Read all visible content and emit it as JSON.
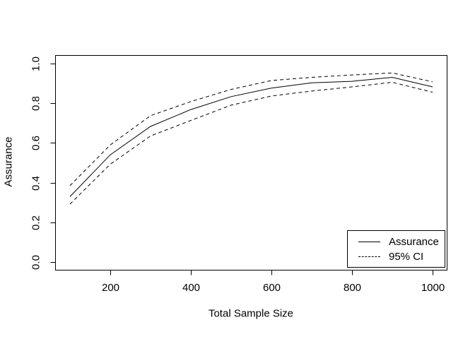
{
  "figure": {
    "background": "#ffffff",
    "line_color": "#000000",
    "text_color": "#000000"
  },
  "chart_data": {
    "type": "line",
    "title": "",
    "xlabel": "Total Sample Size",
    "ylabel": "Assurance",
    "x": [
      100,
      200,
      300,
      400,
      500,
      600,
      700,
      800,
      900,
      1000
    ],
    "series": [
      {
        "name": "Assurance",
        "style": "solid",
        "values": [
          0.33,
          0.54,
          0.683,
          0.768,
          0.833,
          0.876,
          0.902,
          0.91,
          0.93,
          0.882
        ]
      },
      {
        "name": "95% CI upper",
        "style": "dashed",
        "values": [
          0.385,
          0.59,
          0.737,
          0.808,
          0.869,
          0.914,
          0.93,
          0.942,
          0.952,
          0.907
        ]
      },
      {
        "name": "95% CI lower",
        "style": "dashed",
        "values": [
          0.292,
          0.493,
          0.635,
          0.713,
          0.79,
          0.836,
          0.861,
          0.882,
          0.905,
          0.855
        ]
      }
    ],
    "x_ticks": [
      "200",
      "400",
      "600",
      "800",
      "1000"
    ],
    "y_ticks": [
      "0.0",
      "0.2",
      "0.4",
      "0.6",
      "0.8",
      "1.0"
    ],
    "xlim": [
      64,
      1036
    ],
    "ylim": [
      -0.04,
      1.04
    ],
    "grid": false,
    "legend": {
      "position": "bottom-right",
      "entries": [
        {
          "label": "Assurance",
          "line": "solid"
        },
        {
          "label": "95% CI",
          "line": "dashed"
        }
      ]
    }
  }
}
